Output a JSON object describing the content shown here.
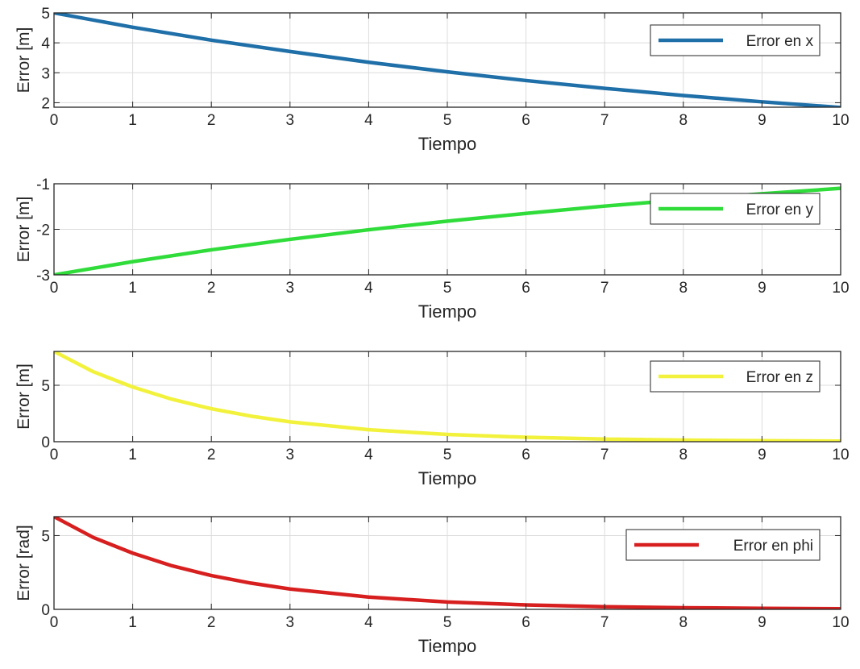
{
  "chart_data": [
    {
      "type": "line",
      "xlabel": "Tiempo",
      "ylabel": "Error  [m]",
      "xlim": [
        0,
        10
      ],
      "ylim": [
        1.85,
        5
      ],
      "xticks": [
        0,
        1,
        2,
        3,
        4,
        5,
        6,
        7,
        8,
        9,
        10
      ],
      "yticks": [
        2,
        3,
        4,
        5
      ],
      "grid": true,
      "legend_position": "top-right",
      "series": [
        {
          "name": "Error en x",
          "color": "#1f6fa8",
          "x": [
            0,
            1,
            2,
            3,
            4,
            5,
            6,
            7,
            8,
            9,
            10
          ],
          "y": [
            5.0,
            4.52,
            4.09,
            3.71,
            3.35,
            3.03,
            2.74,
            2.48,
            2.24,
            2.03,
            1.84
          ]
        }
      ]
    },
    {
      "type": "line",
      "xlabel": "Tiempo",
      "ylabel": "Error  [m]",
      "xlim": [
        0,
        10
      ],
      "ylim": [
        -3,
        -1
      ],
      "xticks": [
        0,
        1,
        2,
        3,
        4,
        5,
        6,
        7,
        8,
        9,
        10
      ],
      "yticks": [
        -3,
        -2,
        -1
      ],
      "grid": true,
      "legend_position": "top-right",
      "series": [
        {
          "name": "Error en y",
          "color": "#2fdc3a",
          "x": [
            0,
            1,
            2,
            3,
            4,
            5,
            6,
            7,
            8,
            9,
            10
          ],
          "y": [
            -3.0,
            -2.71,
            -2.45,
            -2.22,
            -2.01,
            -1.82,
            -1.65,
            -1.49,
            -1.35,
            -1.22,
            -1.1
          ]
        }
      ]
    },
    {
      "type": "line",
      "xlabel": "Tiempo",
      "ylabel": "Error  [m]",
      "xlim": [
        0,
        10
      ],
      "ylim": [
        0,
        8
      ],
      "xticks": [
        0,
        1,
        2,
        3,
        4,
        5,
        6,
        7,
        8,
        9,
        10
      ],
      "yticks": [
        0,
        5
      ],
      "grid": true,
      "legend_position": "top-right",
      "series": [
        {
          "name": "Error en z",
          "color": "#f2f23c",
          "x": [
            0,
            0.5,
            1,
            1.5,
            2,
            2.5,
            3,
            4,
            5,
            6,
            7,
            8,
            9,
            10
          ],
          "y": [
            8.0,
            6.2,
            4.85,
            3.76,
            2.92,
            2.27,
            1.76,
            1.06,
            0.64,
            0.39,
            0.23,
            0.14,
            0.09,
            0.05
          ]
        }
      ]
    },
    {
      "type": "line",
      "xlabel": "Tiempo",
      "ylabel": "Error  [rad]",
      "xlim": [
        0,
        10
      ],
      "ylim": [
        0,
        6.28
      ],
      "xticks": [
        0,
        1,
        2,
        3,
        4,
        5,
        6,
        7,
        8,
        9,
        10
      ],
      "yticks": [
        0,
        5
      ],
      "grid": true,
      "legend_position": "top-right",
      "series": [
        {
          "name": "Error en phi",
          "color": "#d71f1f",
          "x": [
            0,
            0.5,
            1,
            1.5,
            2,
            2.5,
            3,
            4,
            5,
            6,
            7,
            8,
            9,
            10
          ],
          "y": [
            6.28,
            4.87,
            3.81,
            2.95,
            2.29,
            1.78,
            1.38,
            0.83,
            0.5,
            0.3,
            0.18,
            0.11,
            0.07,
            0.04
          ]
        }
      ]
    }
  ]
}
